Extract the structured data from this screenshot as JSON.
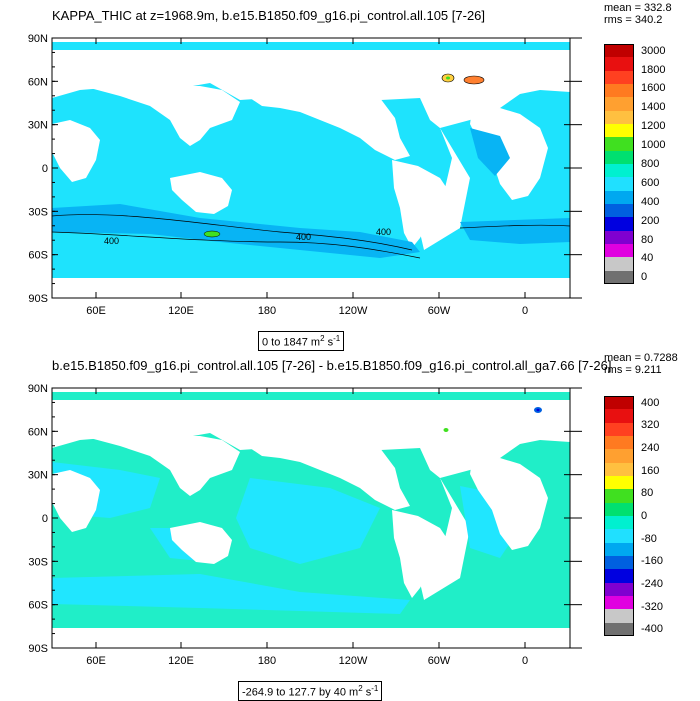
{
  "panels": [
    {
      "title": "KAPPA_THIC at z=1968.9m, b.e15.B1850.f09_g16.pi_control.all.105 [7-26]",
      "stats": {
        "mean": "mean = 332.8",
        "rms": "rms = 340.2"
      },
      "range": {
        "text": "0 to 1847 m",
        "unit_exp": "2",
        "unit_tail": " s",
        "unit_tail_exp": "-1"
      },
      "colorbar": {
        "labels": [
          "3000",
          "1800",
          "1600",
          "1400",
          "1200",
          "1000",
          "800",
          "600",
          "400",
          "200",
          "80",
          "40",
          "0"
        ],
        "colors": [
          "#c00000",
          "#e81010",
          "#ff4020",
          "#ff7a20",
          "#ffa030",
          "#ffc040",
          "#ffff00",
          "#40e020",
          "#00e070",
          "#00f0d0",
          "#20e0ff",
          "#00a8f0",
          "#0060e0",
          "#0000e0",
          "#8000d0",
          "#e000e0",
          "#c8c8c8",
          "#707070"
        ]
      },
      "contour_labels": [
        "400",
        "400",
        "400"
      ],
      "ocean_color": "#1ee3fd",
      "ocean_secondary": "#08b4f4"
    },
    {
      "title": "b.e15.B1850.f09_g16.pi_control.all.105 [7-26] - b.e15.B1850.f09_g16.pi_control.all_ga7.66 [7-26]",
      "stats": {
        "mean": "mean = 0.7288",
        "rms": "rms = 9.211"
      },
      "range": {
        "text": "-264.9 to 127.7 by 40 m",
        "unit_exp": "2",
        "unit_tail": " s",
        "unit_tail_exp": "-1"
      },
      "colorbar": {
        "labels": [
          "400",
          "320",
          "240",
          "160",
          "80",
          "0",
          "-80",
          "-160",
          "-240",
          "-320",
          "-400"
        ],
        "colors": [
          "#c00000",
          "#e81010",
          "#ff4020",
          "#ff7a20",
          "#ffa030",
          "#ffc040",
          "#ffff00",
          "#40e020",
          "#00e070",
          "#00f0d0",
          "#20e0ff",
          "#00a8f0",
          "#0060e0",
          "#0000e0",
          "#8000d0",
          "#e000e0",
          "#c8c8c8",
          "#707070"
        ]
      },
      "ocean_color": "#20eec8",
      "ocean_secondary": "#20e6ff"
    }
  ],
  "lat_ticks": [
    "90N",
    "60N",
    "30N",
    "0",
    "30S",
    "60S",
    "90S"
  ],
  "lon_ticks": [
    "60E",
    "120E",
    "180",
    "120W",
    "60W",
    "0"
  ]
}
